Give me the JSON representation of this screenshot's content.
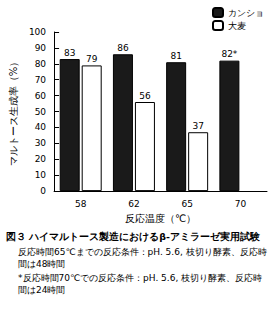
{
  "chart_data": {
    "type": "bar",
    "title": "図３ ハイマルトース製造におけるβ-アミラーゼ実用試験",
    "annotations": [
      "反応時間65℃までの反応条件：pH. 5.6, 枝切り酵素、反応時間は48時間",
      "*反応時間70℃での反応条件：pH. 5.6, 枝切り酵素、反応時間は24時間"
    ],
    "xlabel": "反応温度（℃）",
    "ylabel": "マルトース生成率（%）",
    "categories": [
      "58",
      "62",
      "65",
      "70"
    ],
    "series": [
      {
        "name": "カンショ",
        "color": "#1a1a1a",
        "values": [
          83,
          86,
          81,
          82
        ],
        "value_labels": [
          "83",
          "86",
          "81",
          "82*"
        ]
      },
      {
        "name": "大麦",
        "color": "#ffffff",
        "values": [
          79,
          56,
          37,
          null
        ]
      }
    ],
    "ylim": [
      0,
      100
    ],
    "yticks": [
      0,
      10,
      20,
      30,
      40,
      50,
      60,
      70,
      80,
      90,
      100
    ],
    "grid": false,
    "legend": "upper right",
    "data_labels": true
  }
}
